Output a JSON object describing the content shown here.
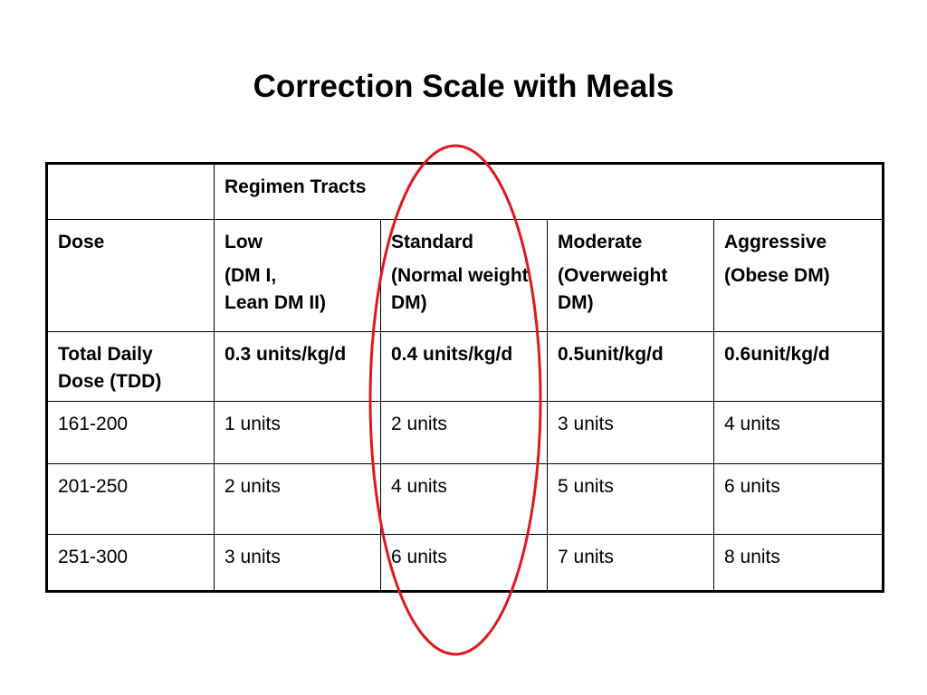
{
  "title": "Correction Scale with Meals",
  "table": {
    "group_header": "Regimen Tracts",
    "header": {
      "dose_label": "Dose",
      "columns": [
        {
          "lines": [
            "Low",
            "(DM I,",
            "Lean DM II)"
          ]
        },
        {
          "lines": [
            "Standard",
            "(Normal weight DM)"
          ]
        },
        {
          "lines": [
            "Moderate",
            "(Overweight DM)"
          ]
        },
        {
          "lines": [
            "Aggressive",
            "(Obese DM)"
          ]
        }
      ]
    },
    "tdd_row": {
      "label": "Total Daily Dose (TDD)",
      "values": [
        "0.3 units/kg/d",
        "0.4 units/kg/d",
        "0.5unit/kg/d",
        "0.6unit/kg/d"
      ]
    },
    "rows": [
      {
        "range": "161-200",
        "values": [
          "1 units",
          "2 units",
          "3 units",
          "4 units"
        ]
      },
      {
        "range": "201-250",
        "values": [
          "2 units",
          "4 units",
          "5 units",
          "6 units"
        ]
      },
      {
        "range": "251-300",
        "values": [
          "3 units",
          "6 units",
          "7 units",
          "8 units"
        ]
      }
    ]
  },
  "annotation": {
    "color": "#e0181b",
    "shape": "oval",
    "target": "Standard column"
  }
}
